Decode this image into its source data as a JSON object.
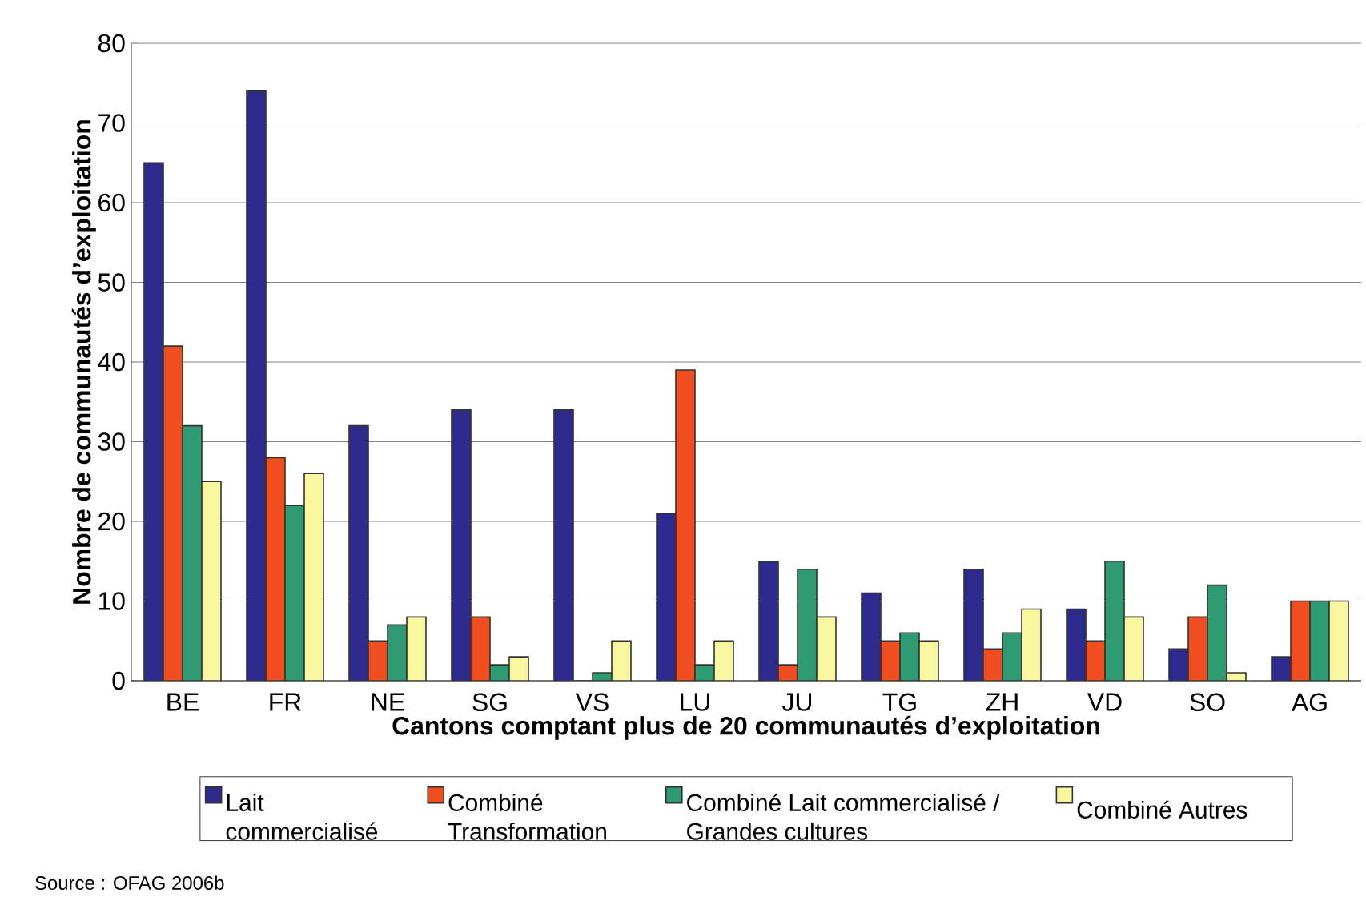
{
  "chart_data": {
    "type": "bar",
    "xlabel": "Cantons comptant plus de 20 communautés d’exploitation",
    "ylabel": "Nombre de communautés d’exploitation",
    "categories": [
      "BE",
      "FR",
      "NE",
      "SG",
      "VS",
      "LU",
      "JU",
      "TG",
      "ZH",
      "VD",
      "SO",
      "AG"
    ],
    "series": [
      {
        "name": "Lait commercialisé",
        "color": "#2e2a8c",
        "values": [
          65,
          74,
          32,
          34,
          34,
          21,
          15,
          11,
          14,
          9,
          4,
          3
        ]
      },
      {
        "name": "Combiné Transformation",
        "color": "#f04e1e",
        "values": [
          42,
          28,
          5,
          8,
          0,
          39,
          2,
          5,
          4,
          5,
          8,
          10
        ]
      },
      {
        "name": "Combiné Lait commercialisé / Grandes cultures",
        "color": "#2f9a72",
        "values": [
          32,
          22,
          7,
          2,
          1,
          2,
          14,
          6,
          6,
          15,
          12,
          10
        ]
      },
      {
        "name": "Combiné Autres",
        "color": "#f9f6a0",
        "values": [
          25,
          26,
          8,
          3,
          5,
          5,
          8,
          5,
          9,
          8,
          1,
          10
        ]
      }
    ],
    "ylim": [
      0,
      80
    ],
    "yticks": [
      0,
      10,
      20,
      30,
      40,
      50,
      60,
      70,
      80
    ],
    "grid": "y",
    "legend": "bottom",
    "annotations": [
      "Source : OFAG 2006b"
    ]
  }
}
